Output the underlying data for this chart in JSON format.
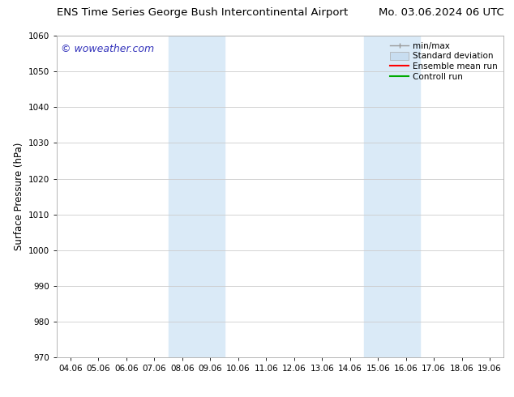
{
  "title_left": "ENS Time Series George Bush Intercontinental Airport",
  "title_right": "Mo. 03.06.2024 06 UTC",
  "ylabel": "Surface Pressure (hPa)",
  "ylim": [
    970,
    1060
  ],
  "yticks": [
    970,
    980,
    990,
    1000,
    1010,
    1020,
    1030,
    1040,
    1050,
    1060
  ],
  "xlabel_ticks": [
    "04.06",
    "05.06",
    "06.06",
    "07.06",
    "08.06",
    "09.06",
    "10.06",
    "11.06",
    "12.06",
    "13.06",
    "14.06",
    "15.06",
    "16.06",
    "17.06",
    "18.06",
    "19.06"
  ],
  "shaded_regions": [
    {
      "xstart": 4,
      "xend": 6,
      "color": "#daeaf7"
    },
    {
      "xstart": 11,
      "xend": 13,
      "color": "#daeaf7"
    }
  ],
  "watermark": "© woweather.com",
  "watermark_color": "#3333bb",
  "legend_items": [
    {
      "label": "min/max",
      "color": "#999999",
      "type": "errorbar"
    },
    {
      "label": "Standard deviation",
      "color": "#c8ddf0",
      "type": "patch"
    },
    {
      "label": "Ensemble mean run",
      "color": "#ff0000",
      "type": "line"
    },
    {
      "label": "Controll run",
      "color": "#00aa00",
      "type": "line"
    }
  ],
  "background_color": "#ffffff",
  "grid_color": "#cccccc",
  "title_fontsize": 9.5,
  "tick_fontsize": 7.5,
  "ylabel_fontsize": 8.5,
  "legend_fontsize": 7.5,
  "watermark_fontsize": 9
}
